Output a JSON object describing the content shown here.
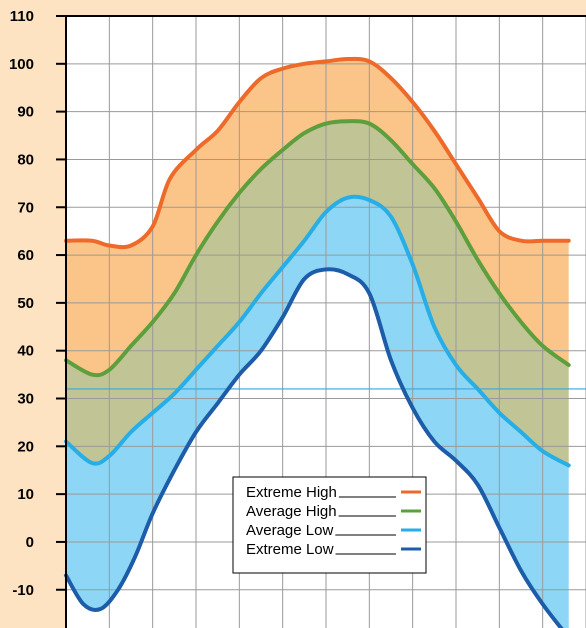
{
  "chart_data": {
    "type": "area",
    "title": "",
    "xlabel": "",
    "ylabel": "",
    "ylim": [
      -18,
      110
    ],
    "yticks": [
      110,
      100,
      90,
      80,
      70,
      60,
      50,
      40,
      30,
      20,
      10,
      0,
      -10
    ],
    "x_count": 12,
    "grid": true,
    "reference_line": {
      "y": 32,
      "color": "#3aa6dc"
    },
    "legend_position": "bottom-center",
    "colors": {
      "background": "#fde3c1",
      "plot_background": "#ffffff",
      "grid": "#9a9a9a",
      "band_high": "#fbc488",
      "band_mid": "#c1c494",
      "band_low": "#8dd6f5"
    },
    "series": [
      {
        "name": "Extreme High",
        "color": "#ee6a2a",
        "x": [
          0,
          0.6,
          1.0,
          1.5,
          2.0,
          2.4,
          3.0,
          3.5,
          4.0,
          4.5,
          5.0,
          5.5,
          6.0,
          6.5,
          7.0,
          7.5,
          8.0,
          8.5,
          9.0,
          9.5,
          10.0,
          10.5,
          11.0,
          11.6
        ],
        "values": [
          63,
          63,
          62,
          62,
          66,
          76,
          82,
          86,
          92,
          97,
          99,
          100,
          100.5,
          101,
          100.5,
          97,
          92,
          86,
          79,
          72,
          65,
          63,
          63,
          63
        ]
      },
      {
        "name": "Average High",
        "color": "#5d9f3c",
        "x": [
          0,
          0.6,
          1.0,
          1.5,
          2.0,
          2.5,
          3.0,
          3.5,
          4.0,
          4.5,
          5.0,
          5.5,
          6.0,
          6.5,
          7.0,
          7.5,
          8.0,
          8.5,
          9.0,
          9.5,
          10.0,
          10.5,
          11.0,
          11.6
        ],
        "values": [
          38,
          35,
          36,
          41,
          46,
          52,
          60,
          67,
          73,
          78,
          82,
          85.5,
          87.5,
          88,
          87.5,
          84,
          79,
          74,
          67,
          59,
          52,
          46,
          41,
          37
        ]
      },
      {
        "name": "Average Low",
        "color": "#27aee6",
        "x": [
          0,
          0.6,
          1.0,
          1.5,
          2.0,
          2.5,
          3.0,
          3.5,
          4.0,
          4.5,
          5.0,
          5.5,
          6.0,
          6.5,
          7.0,
          7.5,
          8.0,
          8.5,
          9.0,
          9.5,
          10.0,
          10.5,
          11.0,
          11.6
        ],
        "values": [
          21,
          16.5,
          18,
          23,
          27,
          31,
          36,
          41,
          46,
          52,
          57.5,
          63,
          69,
          72,
          71.5,
          68,
          58,
          45,
          37,
          32,
          27,
          23,
          19,
          16
        ]
      },
      {
        "name": "Extreme Low",
        "color": "#1c5ca8",
        "x": [
          0,
          0.4,
          0.8,
          1.2,
          1.6,
          2.0,
          2.5,
          3.0,
          3.5,
          4.0,
          4.5,
          5.0,
          5.5,
          6.0,
          6.5,
          7.0,
          7.5,
          8.0,
          8.5,
          9.0,
          9.5,
          10.0,
          10.5,
          11.0,
          11.6
        ],
        "values": [
          -7,
          -13,
          -14,
          -10,
          -3,
          6,
          15,
          23,
          29,
          35,
          40,
          47,
          55,
          57,
          56,
          52,
          38,
          28,
          21,
          17,
          12,
          3,
          -6,
          -13,
          -20
        ]
      }
    ]
  }
}
